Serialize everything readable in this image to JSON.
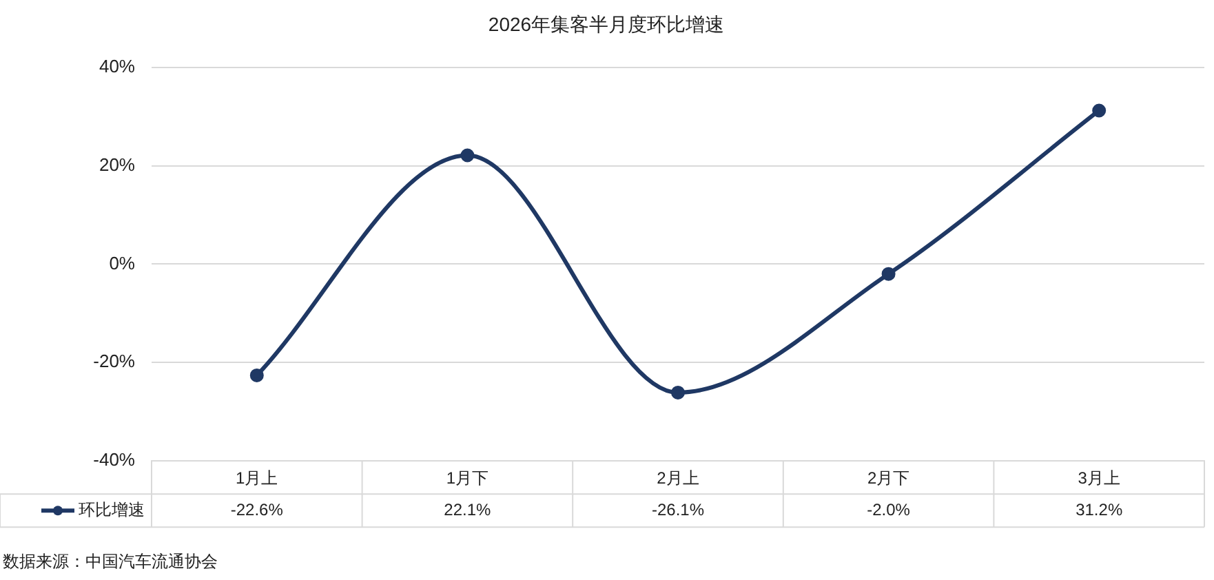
{
  "chart_data": {
    "type": "line",
    "title": "2026年集客半月度环比增速",
    "categories": [
      "1月上",
      "1月下",
      "2月上",
      "2月下",
      "3月上"
    ],
    "series": [
      {
        "name": "环比增速",
        "color": "#1f3864",
        "values": [
          -22.6,
          22.1,
          -26.1,
          -2.0,
          31.2
        ]
      }
    ],
    "ylim": [
      -40,
      40
    ],
    "yticks": [
      {
        "value": -40,
        "label": "-40%"
      },
      {
        "value": -20,
        "label": "-20%"
      },
      {
        "value": 0,
        "label": "0%"
      },
      {
        "value": 20,
        "label": "20%"
      },
      {
        "value": 40,
        "label": "40%"
      }
    ],
    "grid": "y",
    "legend": "bottom",
    "marker": "circle",
    "line_style": "solid",
    "value_labels": [
      "-22.6%",
      "22.1%",
      "-26.1%",
      "-2.0%",
      "31.2%"
    ],
    "annotations": [
      "数据来源：中国汽车流通协会"
    ]
  }
}
